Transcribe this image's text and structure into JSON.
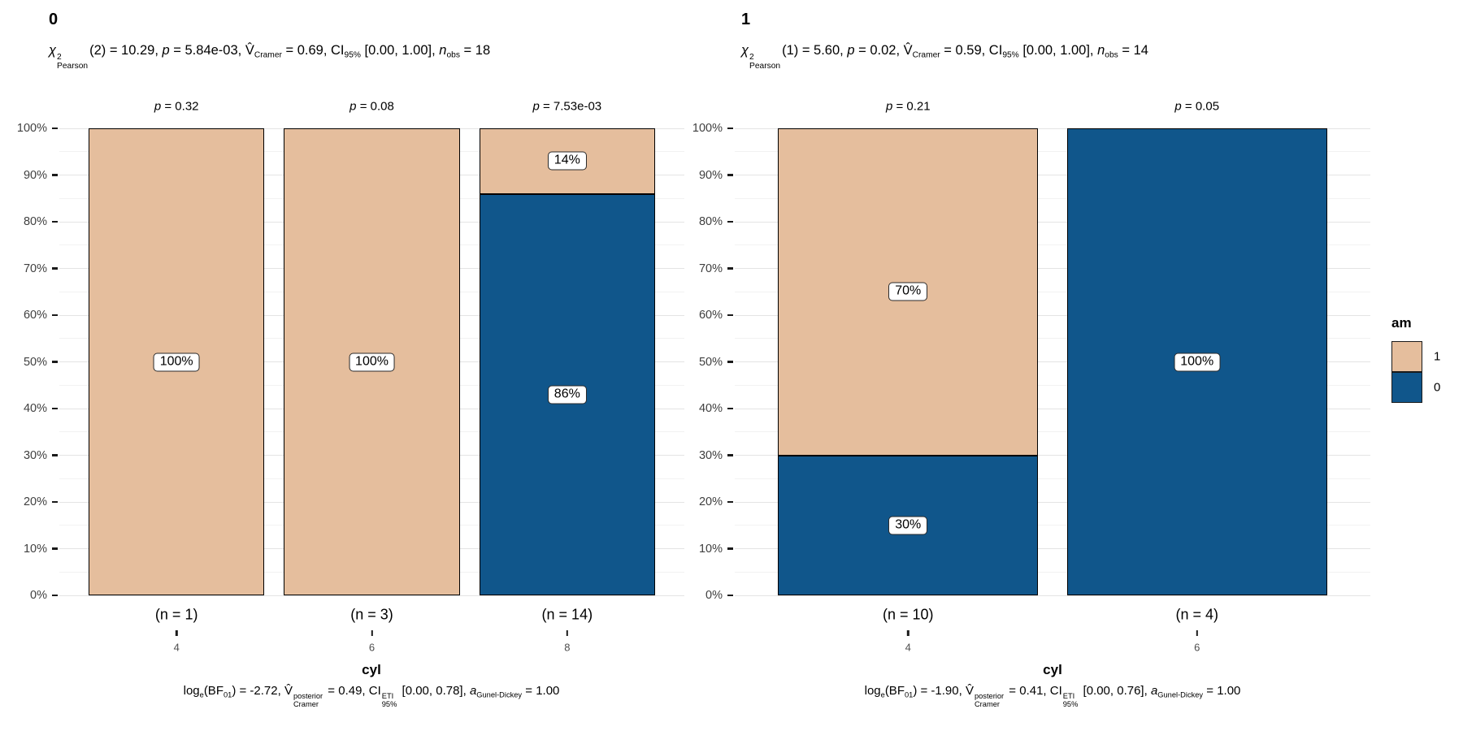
{
  "chart_data": [
    {
      "type": "bar",
      "subtype": "stacked-percent",
      "facet_title": "0",
      "subtitle": "χ²_Pearson(2) = 10.29, p = 5.84e-03, V̂_Cramer = 0.69, CI_95% [0.00, 1.00], n_obs = 18",
      "caption": "log_e(BF_01) = -2.72, V̂_Cramer^posterior = 0.49, CI_95%^ETI [0.00, 0.78], a_Gunel-Dickey = 1.00",
      "xlabel": "cyl",
      "categories": [
        "4",
        "6",
        "8"
      ],
      "n_labels": [
        "(n = 1)",
        "(n = 3)",
        "(n = 14)"
      ],
      "p_labels": [
        "p = 0.32",
        "p = 0.08",
        "p = 7.53e-03"
      ],
      "series": [
        {
          "name": "1",
          "values": [
            100,
            100,
            14
          ]
        },
        {
          "name": "0",
          "values": [
            0,
            0,
            86
          ]
        }
      ],
      "ylim": [
        0,
        100
      ],
      "y_tick_labels": [
        "0%",
        "10%",
        "20%",
        "30%",
        "40%",
        "50%",
        "60%",
        "70%",
        "80%",
        "90%",
        "100%"
      ],
      "grid": true,
      "legend_position": "right"
    },
    {
      "type": "bar",
      "subtype": "stacked-percent",
      "facet_title": "1",
      "subtitle": "χ²_Pearson(1) = 5.60, p = 0.02, V̂_Cramer = 0.59, CI_95% [0.00, 1.00], n_obs = 14",
      "caption": "log_e(BF_01) = -1.90, V̂_Cramer^posterior = 0.41, CI_95%^ETI [0.00, 0.76], a_Gunel-Dickey = 1.00",
      "xlabel": "cyl",
      "categories": [
        "4",
        "6"
      ],
      "n_labels": [
        "(n = 10)",
        "(n = 4)"
      ],
      "p_labels": [
        "p = 0.21",
        "p = 0.05"
      ],
      "series": [
        {
          "name": "1",
          "values": [
            70,
            0
          ]
        },
        {
          "name": "0",
          "values": [
            30,
            100
          ]
        }
      ],
      "ylim": [
        0,
        100
      ],
      "y_tick_labels": [
        "0%",
        "10%",
        "20%",
        "30%",
        "40%",
        "50%",
        "60%",
        "70%",
        "80%",
        "90%",
        "100%"
      ],
      "grid": true,
      "legend_position": "right"
    }
  ],
  "legend": {
    "title": "am",
    "entries": [
      {
        "label": "1",
        "color": "#E5BE9D"
      },
      {
        "label": "0",
        "color": "#10568B"
      }
    ]
  },
  "colors": {
    "background": "#FFFFFF",
    "grid_major": "#E4E4E4",
    "grid_minor": "#F2F2F2",
    "bar_border": "#000000",
    "axis_text": "#404040",
    "tick": "#1A1A1A"
  },
  "rich": {
    "subtitles": [
      [
        {
          "t": "χ",
          "c": "i",
          "sup": "2",
          "sub": "Pearson"
        },
        {
          "t": "(2) = 10.29, "
        },
        {
          "t": "p",
          "c": "i"
        },
        {
          "t": " = 5.84e-03, "
        },
        {
          "t": "V̂",
          "sub": "Cramer"
        },
        {
          "t": " = 0.69, CI",
          "sub": "95%"
        },
        {
          "t": " [0.00, 1.00], "
        },
        {
          "t": "n",
          "c": "i",
          "sub": "obs"
        },
        {
          "t": " = 18"
        }
      ],
      [
        {
          "t": "χ",
          "c": "i",
          "sup": "2",
          "sub": "Pearson"
        },
        {
          "t": "(1) = 5.60, "
        },
        {
          "t": "p",
          "c": "i"
        },
        {
          "t": " = 0.02, "
        },
        {
          "t": "V̂",
          "sub": "Cramer"
        },
        {
          "t": " = 0.59, CI",
          "sub": "95%"
        },
        {
          "t": " [0.00, 1.00], "
        },
        {
          "t": "n",
          "c": "i",
          "sub": "obs"
        },
        {
          "t": " = 14"
        }
      ]
    ],
    "captions": [
      [
        {
          "t": "log",
          "sub": "e"
        },
        {
          "t": "(BF",
          "sub": "01"
        },
        {
          "t": ") = -2.72, "
        },
        {
          "t": "V̂",
          "sup": "posterior",
          "sub": "Cramer"
        },
        {
          "t": " = 0.49, CI",
          "sup": "ETI",
          "sub": "95%"
        },
        {
          "t": " [0.00, 0.78], "
        },
        {
          "t": "a",
          "c": "i",
          "sub": "Gunel-Dickey"
        },
        {
          "t": " = 1.00"
        }
      ],
      [
        {
          "t": "log",
          "sub": "e"
        },
        {
          "t": "(BF",
          "sub": "01"
        },
        {
          "t": ") = -1.90, "
        },
        {
          "t": "V̂",
          "sup": "posterior",
          "sub": "Cramer"
        },
        {
          "t": " = 0.41, CI",
          "sup": "ETI",
          "sub": "95%"
        },
        {
          "t": " [0.00, 0.76], "
        },
        {
          "t": "a",
          "c": "i",
          "sub": "Gunel-Dickey"
        },
        {
          "t": " = 1.00"
        }
      ]
    ],
    "p_labels": [
      [
        [
          {
            "t": "p",
            "c": "i"
          },
          {
            "t": " = 0.32"
          }
        ],
        [
          {
            "t": "p",
            "c": "i"
          },
          {
            "t": " = 0.08"
          }
        ],
        [
          {
            "t": "p",
            "c": "i"
          },
          {
            "t": " = 7.53e-03"
          }
        ]
      ],
      [
        [
          {
            "t": "p",
            "c": "i"
          },
          {
            "t": " = 0.21"
          }
        ],
        [
          {
            "t": "p",
            "c": "i"
          },
          {
            "t": " = 0.05"
          }
        ]
      ]
    ]
  }
}
